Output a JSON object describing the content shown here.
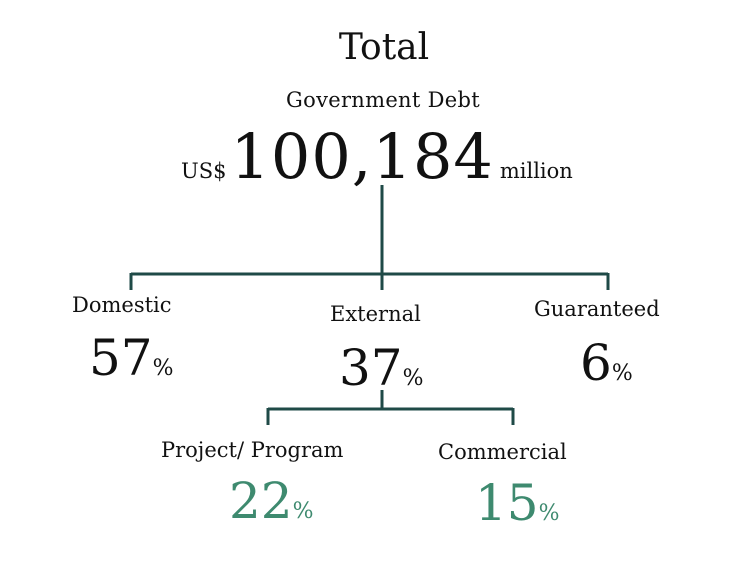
{
  "header": {
    "title": "Total",
    "subtitle": "Government Debt",
    "currency": "US$",
    "total_value": "100,184",
    "unit": "million"
  },
  "branches": {
    "domestic": {
      "label": "Domestic",
      "value": "57",
      "unit": "%"
    },
    "external": {
      "label": "External",
      "value": "37",
      "unit": "%"
    },
    "guaranteed": {
      "label": "Guaranteed",
      "value": "6",
      "unit": "%"
    }
  },
  "sub_branches": {
    "project_program": {
      "label": "Project/ Program",
      "value": "22",
      "unit": "%"
    },
    "commercial": {
      "label": "Commercial",
      "value": "15",
      "unit": "%"
    }
  },
  "colors": {
    "connector": "#1f4a47",
    "sub_value": "#3e8a6f",
    "text": "#111111"
  }
}
